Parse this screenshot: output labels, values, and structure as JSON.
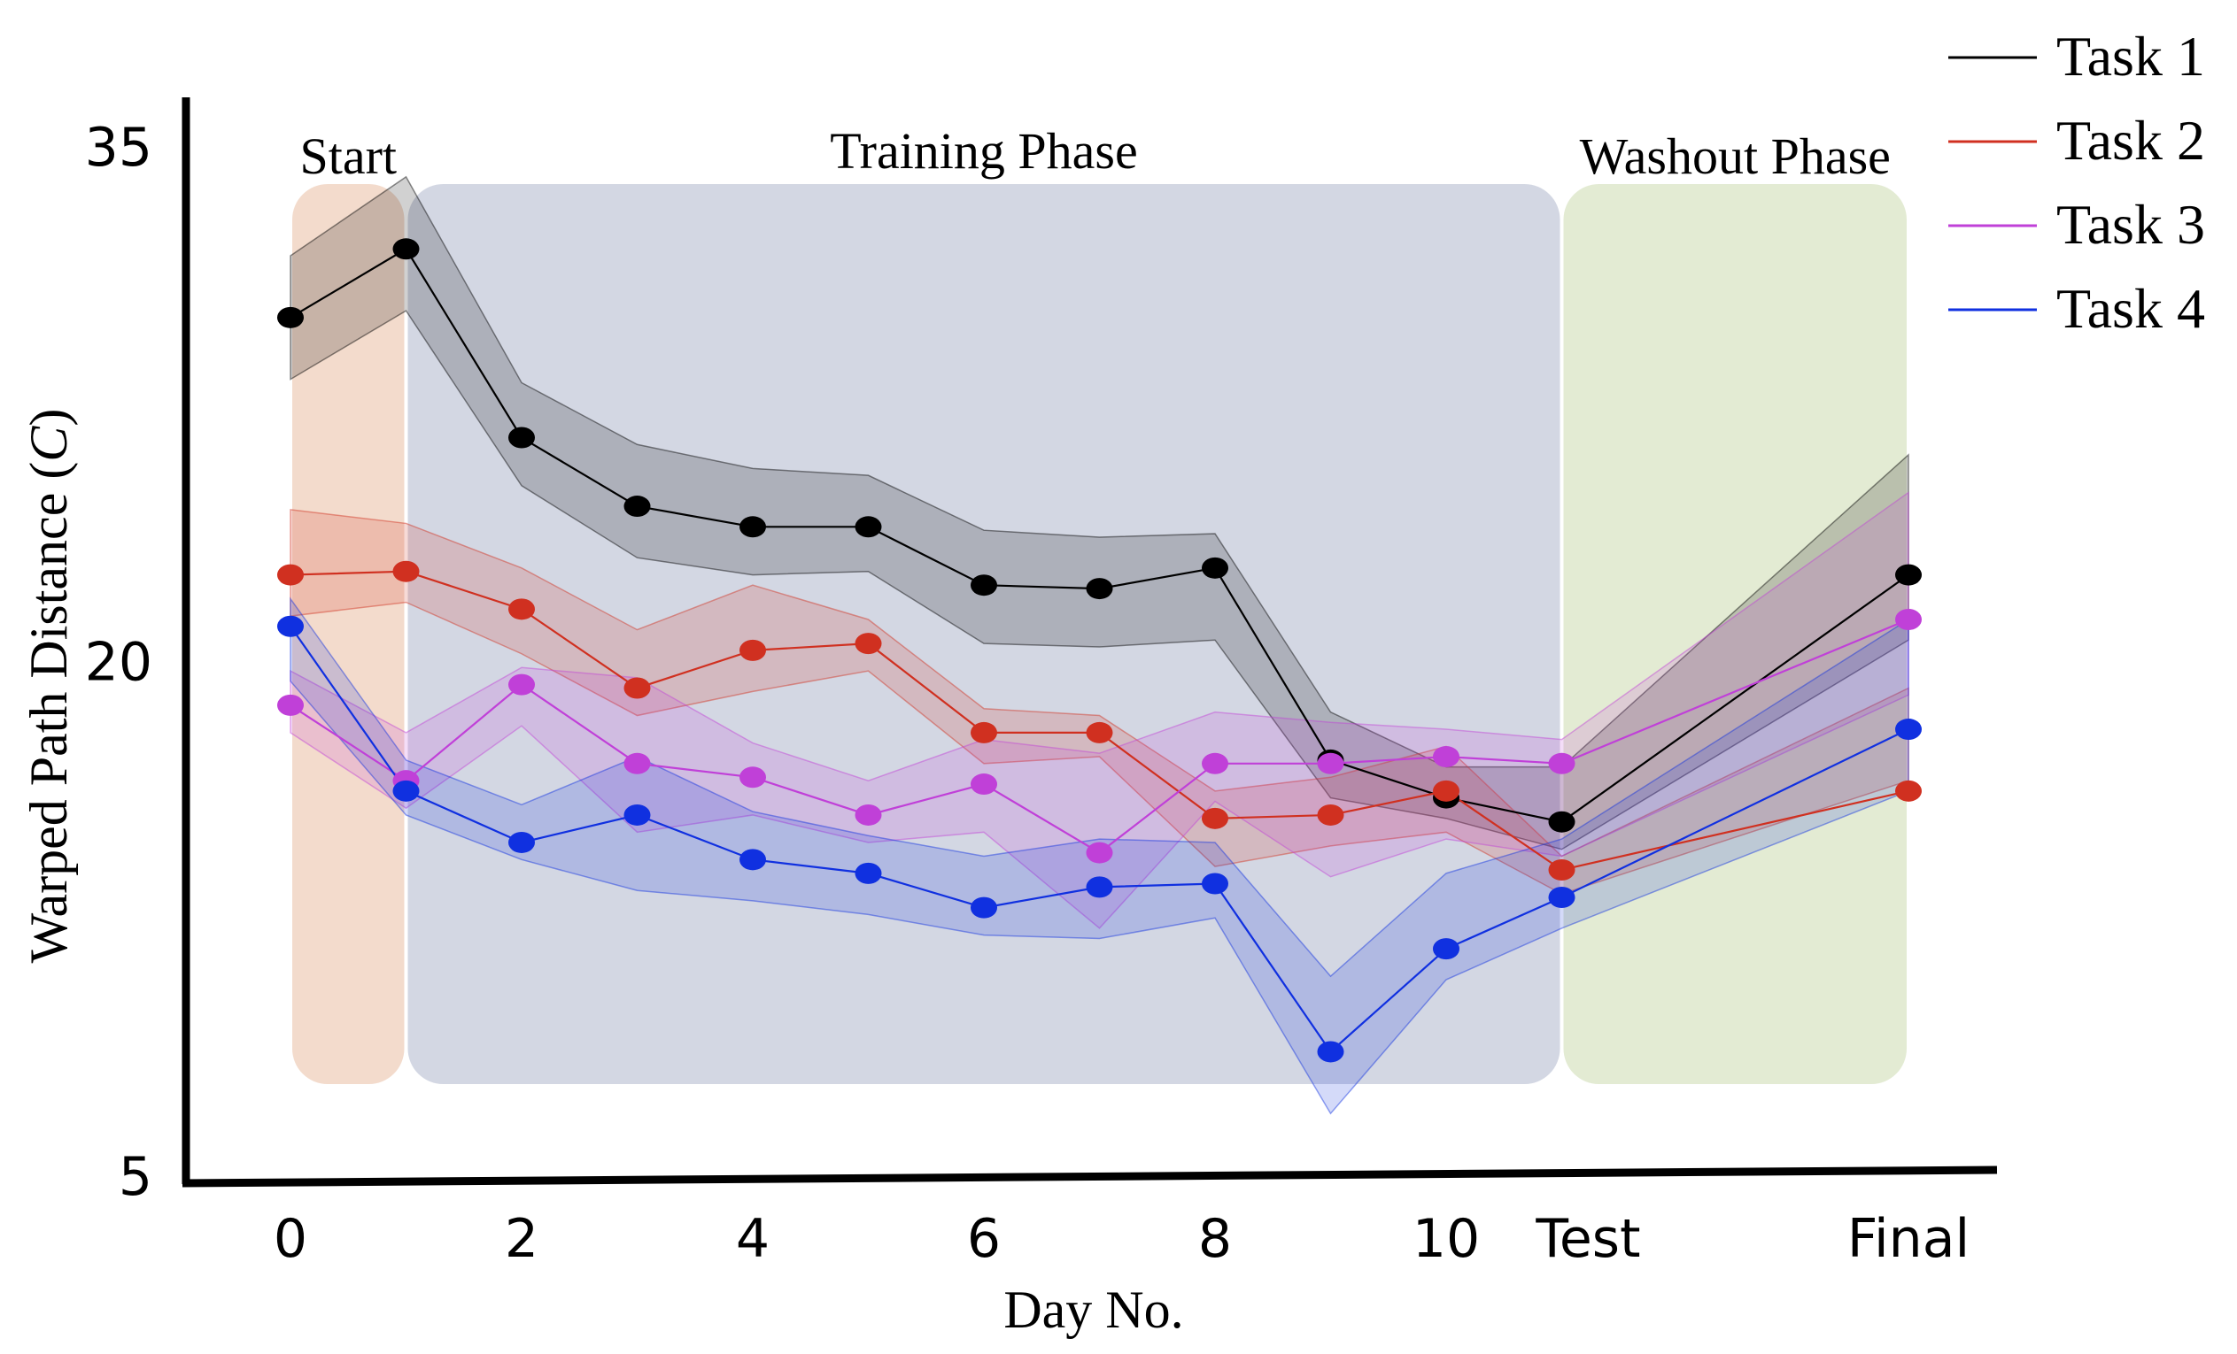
{
  "chart_data": {
    "type": "line",
    "xlabel": "Day No.",
    "ylabel_main": "Warped Path Distance (",
    "ylabel_symbol": "C",
    "ylabel_end": ")",
    "ylim": [
      5,
      35
    ],
    "y_ticks": [
      5,
      20,
      35
    ],
    "x_ticks": [
      {
        "x": 0,
        "label": "0"
      },
      {
        "x": 2,
        "label": "2"
      },
      {
        "x": 4,
        "label": "4"
      },
      {
        "x": 6,
        "label": "6"
      },
      {
        "x": 8,
        "label": "8"
      },
      {
        "x": 10,
        "label": "10"
      },
      {
        "x": 11,
        "label": "Test"
      },
      {
        "x": 14,
        "label": "Final"
      }
    ],
    "x": [
      0,
      1,
      2,
      3,
      4,
      5,
      6,
      7,
      8,
      9,
      10,
      11,
      14
    ],
    "phases": [
      {
        "label": "Start",
        "from": 0,
        "to": 1,
        "color": "#e8b89a"
      },
      {
        "label": "Training Phase",
        "from": 1,
        "to": 11,
        "color": "#a8b0c8"
      },
      {
        "label": "Washout Phase",
        "from": 11,
        "to": 14,
        "color": "#c8d8a8"
      }
    ],
    "series": [
      {
        "name": "Task 1",
        "color": "#000000",
        "values": [
          30.0,
          32.0,
          26.5,
          24.5,
          23.9,
          23.9,
          22.2,
          22.1,
          22.7,
          17.1,
          16.0,
          15.3,
          22.5
        ],
        "lower": [
          28.2,
          30.2,
          25.1,
          23.0,
          22.5,
          22.6,
          20.5,
          20.4,
          20.6,
          16.0,
          15.4,
          14.5,
          20.6
        ],
        "upper": [
          31.8,
          34.1,
          28.1,
          26.3,
          25.6,
          25.4,
          23.8,
          23.6,
          23.7,
          18.5,
          16.9,
          16.9,
          26.0
        ]
      },
      {
        "name": "Task 2",
        "color": "#d03020",
        "values": [
          22.5,
          22.6,
          21.5,
          19.2,
          20.3,
          20.5,
          17.9,
          17.9,
          15.4,
          15.5,
          16.2,
          13.9,
          16.2
        ],
        "lower": [
          21.3,
          21.7,
          20.2,
          18.4,
          19.1,
          19.7,
          17.0,
          17.2,
          14.0,
          14.6,
          15.0,
          13.2,
          16.5
        ],
        "upper": [
          24.4,
          24.0,
          22.7,
          20.9,
          22.2,
          21.2,
          18.6,
          18.4,
          16.2,
          16.6,
          17.5,
          14.3,
          19.2
        ]
      },
      {
        "name": "Task 3",
        "color": "#c040d8",
        "values": [
          18.7,
          16.5,
          19.3,
          17.0,
          16.6,
          15.5,
          16.4,
          14.4,
          17.0,
          17.0,
          17.2,
          17.0,
          21.2
        ],
        "lower": [
          17.9,
          15.7,
          18.1,
          15.0,
          15.5,
          14.7,
          15.0,
          12.2,
          15.9,
          13.7,
          14.8,
          14.3,
          19.0
        ],
        "upper": [
          19.7,
          17.9,
          19.8,
          19.5,
          17.6,
          16.5,
          17.7,
          17.3,
          18.5,
          18.2,
          18.0,
          17.7,
          24.9
        ]
      },
      {
        "name": "Task 4",
        "color": "#1030e0",
        "values": [
          21.0,
          16.2,
          14.7,
          15.5,
          14.2,
          13.8,
          12.8,
          13.4,
          13.5,
          8.6,
          11.6,
          13.1,
          18.0
        ],
        "lower": [
          19.4,
          15.5,
          14.2,
          13.3,
          13.0,
          12.6,
          12.0,
          11.9,
          12.5,
          6.8,
          10.7,
          12.2,
          16.2
        ],
        "upper": [
          21.8,
          17.1,
          15.8,
          17.2,
          15.6,
          14.9,
          14.3,
          14.8,
          14.7,
          10.8,
          13.8,
          14.8,
          21.2
        ]
      }
    ],
    "legend_position": "top-right",
    "grid": false
  }
}
